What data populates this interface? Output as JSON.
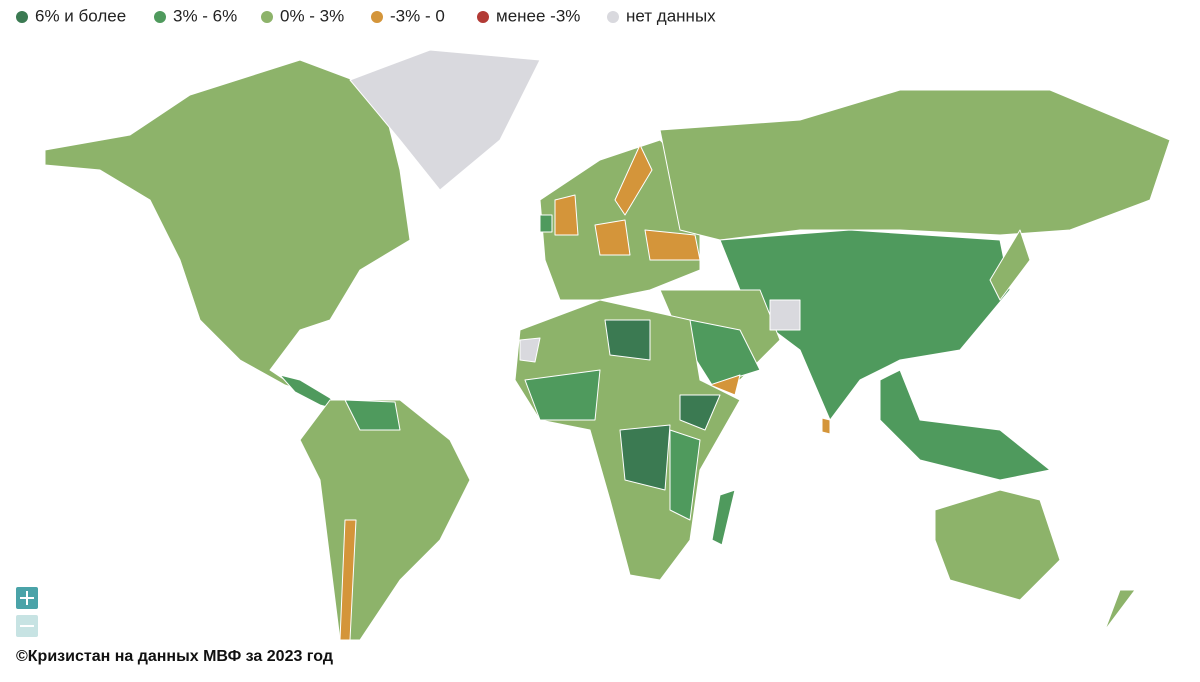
{
  "legend": {
    "items": [
      {
        "label": "6% и более",
        "color": "#3b7a52"
      },
      {
        "label": "3% - 6%",
        "color": "#4f9a5d"
      },
      {
        "label": "0% - 3%",
        "color": "#8db36a"
      },
      {
        "label": "-3% - 0",
        "color": "#d4953a"
      },
      {
        "label": "менее -3%",
        "color": "#b23a35"
      },
      {
        "label": "нет данных",
        "color": "#d9d9de"
      }
    ]
  },
  "credit": "©Кризистан на данных МВФ за 2023 год"
}
